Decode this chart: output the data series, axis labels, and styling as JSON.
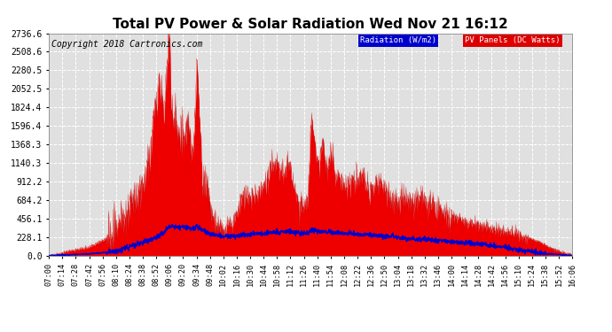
{
  "title": "Total PV Power & Solar Radiation Wed Nov 21 16:12",
  "copyright": "Copyright 2018 Cartronics.com",
  "legend_radiation": "Radiation (W/m2)",
  "legend_pv": "PV Panels (DC Watts)",
  "y_ticks": [
    0.0,
    228.1,
    456.1,
    684.2,
    912.2,
    1140.3,
    1368.3,
    1596.4,
    1824.4,
    2052.5,
    2280.5,
    2508.6,
    2736.6
  ],
  "y_max": 2736.6,
  "bg_color": "#ffffff",
  "plot_bg_color": "#e0e0e0",
  "grid_color": "#ffffff",
  "radiation_color": "#0000cc",
  "pv_fill_color": "#ee0000",
  "title_fontsize": 11,
  "copyright_fontsize": 7,
  "legend_rad_bg": "#0000cc",
  "legend_pv_bg": "#dd0000",
  "x_tick_labels": [
    "07:00",
    "07:14",
    "07:28",
    "07:42",
    "07:56",
    "08:10",
    "08:24",
    "08:38",
    "08:52",
    "09:06",
    "09:20",
    "09:34",
    "09:48",
    "10:02",
    "10:16",
    "10:30",
    "10:44",
    "10:58",
    "11:12",
    "11:26",
    "11:40",
    "11:54",
    "12:08",
    "12:22",
    "12:36",
    "12:50",
    "13:04",
    "13:18",
    "13:32",
    "13:46",
    "14:00",
    "14:14",
    "14:28",
    "14:42",
    "14:56",
    "15:10",
    "15:24",
    "15:38",
    "15:52",
    "16:06"
  ]
}
